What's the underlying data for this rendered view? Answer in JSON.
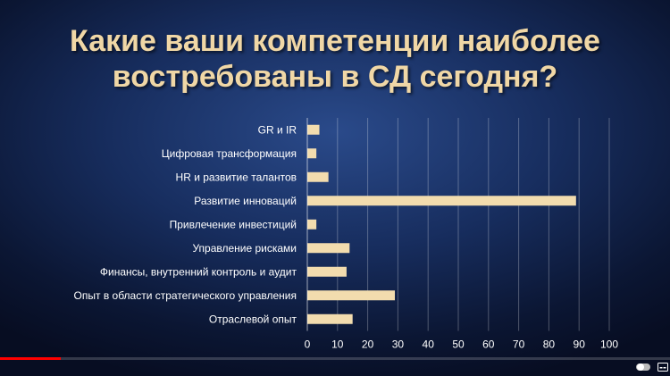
{
  "title_line1": "Какие ваши компетенции наиболее",
  "title_line2": "востребованы в СД сегодня?",
  "colors": {
    "bar": "#f2dcae",
    "axis": "#ffffff",
    "grid": "#ffffff",
    "title": "#f0d7a6",
    "progress": "#ff0000"
  },
  "video_progress": 0.09,
  "chart_data": {
    "type": "bar",
    "orientation": "horizontal",
    "title": "Какие ваши компетенции наиболее востребованы в СД сегодня?",
    "categories": [
      "GR и IR",
      "Цифровая трансформация",
      "HR и развитие талантов",
      "Развитие инноваций",
      "Привлечение инвестиций",
      "Управление рисками",
      "Финансы, внутренний контроль и аудит",
      "Опыт в области стратегического управления",
      "Отраслевой опыт"
    ],
    "values": [
      4,
      3,
      7,
      89,
      3,
      14,
      13,
      29,
      15
    ],
    "xlim": [
      0,
      100
    ],
    "xticks": [
      "0",
      "10",
      "20",
      "30",
      "40",
      "50",
      "60",
      "70",
      "80",
      "90",
      "100"
    ],
    "grid": true
  }
}
